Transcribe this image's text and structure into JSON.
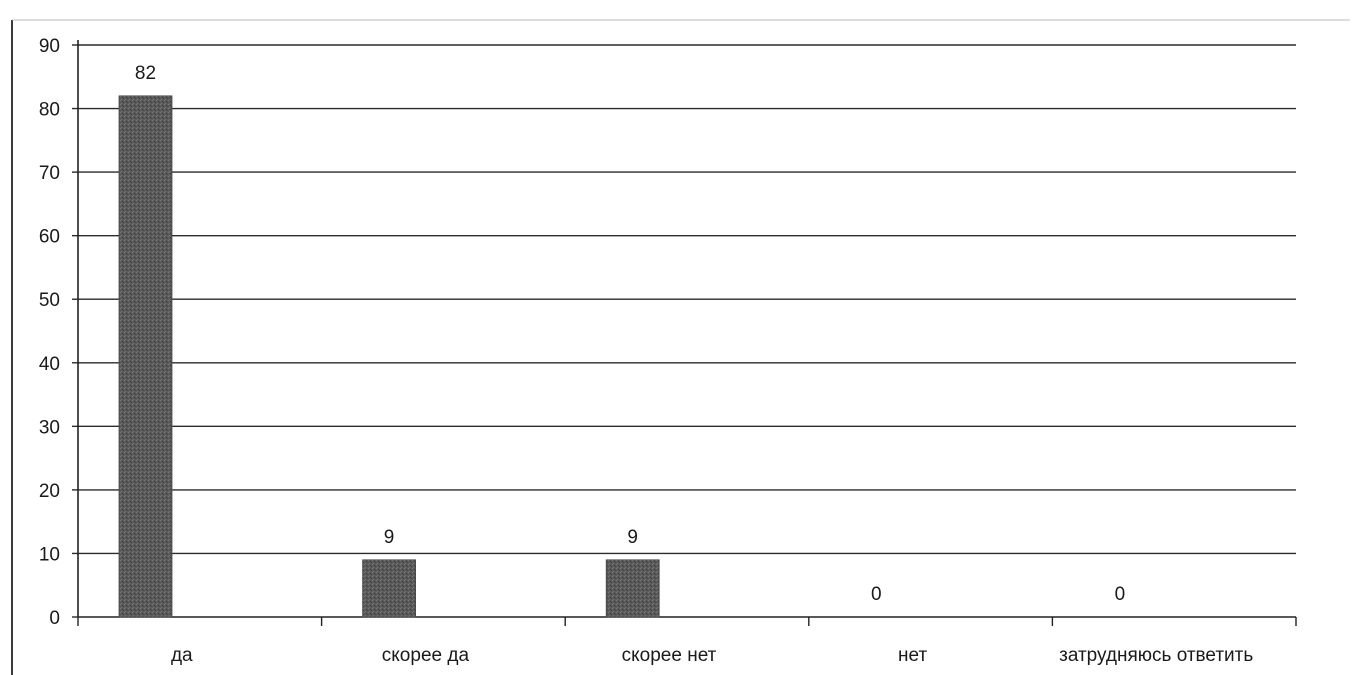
{
  "chart_data": {
    "type": "bar",
    "categories": [
      "да",
      "скорее да",
      "скорее нет",
      "нет",
      "затрудняюсь ответить"
    ],
    "values": [
      82,
      9,
      9,
      0,
      0
    ],
    "data_labels": [
      "82",
      "9",
      "9",
      "0",
      "0"
    ],
    "ylim": [
      0,
      90
    ],
    "yticks": [
      0,
      10,
      20,
      30,
      40,
      50,
      60,
      70,
      80,
      90
    ],
    "grid": true,
    "legend": "none",
    "bar_color": "#555555",
    "grid_color": "#2b2b2b",
    "text_color": "#1a1a1a"
  }
}
